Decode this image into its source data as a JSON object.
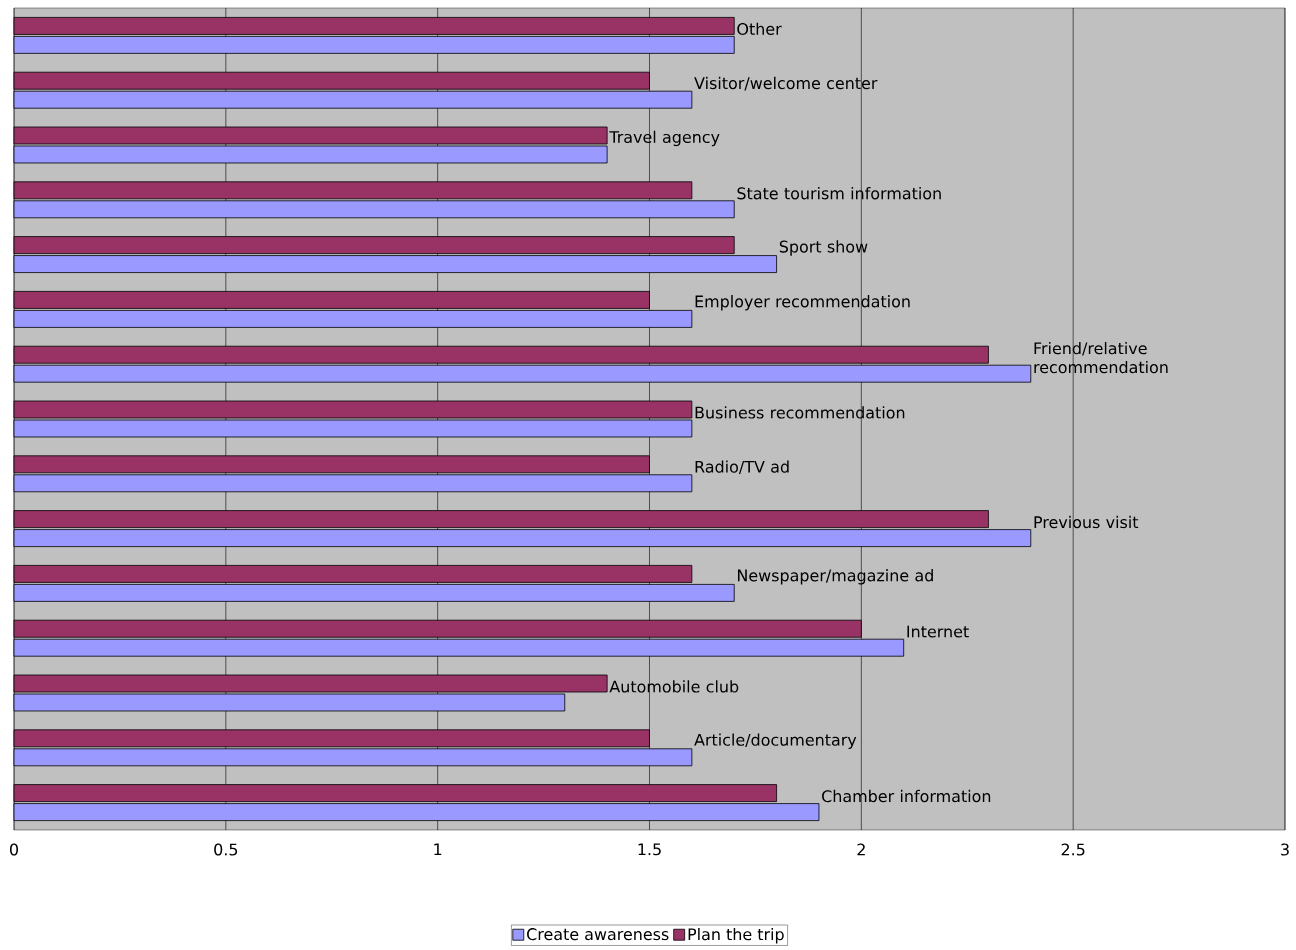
{
  "chart_data": {
    "type": "bar",
    "orientation": "horizontal",
    "categories": [
      "Other",
      "Visitor/welcome center",
      "Travel agency",
      "State tourism information",
      "Sport show",
      "Employer recommendation",
      "Friend/relative recommendation",
      "Business recommendation",
      "Radio/TV ad",
      "Previous visit",
      "Newspaper/magazine ad",
      "Internet",
      "Automobile club",
      "Article/documentary",
      "Chamber information"
    ],
    "series": [
      {
        "name": "Create awareness",
        "color": "#9999ff",
        "values": [
          1.7,
          1.6,
          1.4,
          1.7,
          1.8,
          1.6,
          2.4,
          1.6,
          1.6,
          2.4,
          1.7,
          2.1,
          1.3,
          1.6,
          1.9
        ]
      },
      {
        "name": "Plan the trip",
        "color": "#993366",
        "values": [
          1.7,
          1.5,
          1.4,
          1.6,
          1.7,
          1.5,
          2.3,
          1.6,
          1.5,
          2.3,
          1.6,
          2.0,
          1.4,
          1.5,
          1.8
        ]
      }
    ],
    "xlim": [
      0,
      3
    ],
    "xticks": [
      0,
      0.5,
      1,
      1.5,
      2,
      2.5,
      3
    ],
    "grid": "x",
    "legend": "bottom"
  }
}
